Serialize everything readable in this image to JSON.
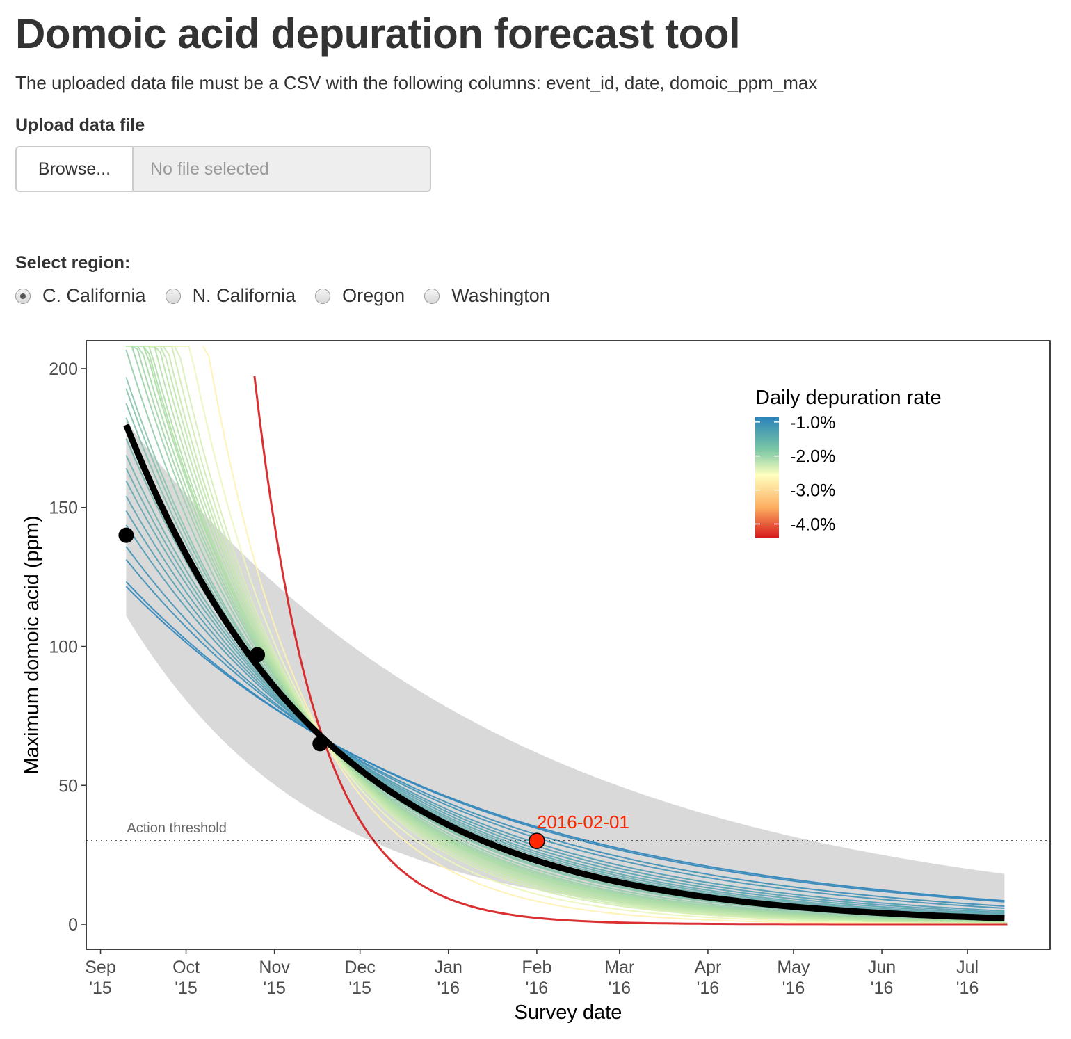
{
  "header": {
    "title": "Domoic acid depuration forecast tool",
    "instructions": "The uploaded data file must be a CSV with the following columns: event_id, date, domoic_ppm_max"
  },
  "upload": {
    "label": "Upload data file",
    "browse_label": "Browse...",
    "file_status": "No file selected"
  },
  "region": {
    "label": "Select region:",
    "options": [
      {
        "label": "C. California",
        "selected": true
      },
      {
        "label": "N. California",
        "selected": false
      },
      {
        "label": "Oregon",
        "selected": false
      },
      {
        "label": "Washington",
        "selected": false
      }
    ]
  },
  "chart_data": {
    "type": "line",
    "xlabel": "Survey date",
    "ylabel": "Maximum domoic acid (ppm)",
    "xlim": [
      "2015-08-27",
      "2016-07-30"
    ],
    "ylim": [
      -9,
      210
    ],
    "x_ticks": [
      {
        "date": "2015-09-01",
        "label": [
          "Sep",
          "'15"
        ]
      },
      {
        "date": "2015-10-01",
        "label": [
          "Oct",
          "'15"
        ]
      },
      {
        "date": "2015-11-01",
        "label": [
          "Nov",
          "'15"
        ]
      },
      {
        "date": "2015-12-01",
        "label": [
          "Dec",
          "'15"
        ]
      },
      {
        "date": "2016-01-01",
        "label": [
          "Jan",
          "'16"
        ]
      },
      {
        "date": "2016-02-01",
        "label": [
          "Feb",
          "'16"
        ]
      },
      {
        "date": "2016-03-01",
        "label": [
          "Mar",
          "'16"
        ]
      },
      {
        "date": "2016-04-01",
        "label": [
          "Apr",
          "'16"
        ]
      },
      {
        "date": "2016-05-01",
        "label": [
          "May",
          "'16"
        ]
      },
      {
        "date": "2016-06-01",
        "label": [
          "Jun",
          "'16"
        ]
      },
      {
        "date": "2016-07-01",
        "label": [
          "Jul",
          "'16"
        ]
      }
    ],
    "y_ticks": [
      0,
      50,
      100,
      150,
      200
    ],
    "grid": false,
    "observed_points": [
      {
        "date": "2015-09-10",
        "ppm": 140
      },
      {
        "date": "2015-10-26",
        "ppm": 97
      },
      {
        "date": "2015-11-17",
        "ppm": 65
      }
    ],
    "anchor": {
      "date": "2015-11-18",
      "ppm": 67
    },
    "fit": {
      "start": "2015-09-10",
      "end": "2016-07-15",
      "daily_rate_pct": -1.42
    },
    "confidence_band": {
      "upper_start_ppm": 181,
      "upper_end_ppm": 18,
      "lower_start_ppm": 111,
      "lower_end_ppm": 1
    },
    "forecast_point": {
      "date": "2016-02-01",
      "ppm": 30,
      "label": "2016-02-01"
    },
    "threshold": {
      "ppm": 30,
      "label": "Action threshold"
    },
    "ensemble_end": "2016-07-15",
    "ensemble": [
      {
        "start": "2015-09-10",
        "rate_pct": -0.86
      },
      {
        "start": "2015-09-10",
        "rate_pct": -0.88
      },
      {
        "start": "2015-09-10",
        "rate_pct": -0.97
      },
      {
        "start": "2015-09-10",
        "rate_pct": -1.02
      },
      {
        "start": "2015-09-10",
        "rate_pct": -1.1
      },
      {
        "start": "2015-09-10",
        "rate_pct": -1.15
      },
      {
        "start": "2015-09-10",
        "rate_pct": -1.2
      },
      {
        "start": "2015-09-10",
        "rate_pct": -1.25
      },
      {
        "start": "2015-09-10",
        "rate_pct": -1.29
      },
      {
        "start": "2015-09-10",
        "rate_pct": -1.33
      },
      {
        "start": "2015-09-10",
        "rate_pct": -1.38
      },
      {
        "start": "2015-09-10",
        "rate_pct": -1.41
      },
      {
        "start": "2015-09-10",
        "rate_pct": -1.44
      },
      {
        "start": "2015-09-10",
        "rate_pct": -1.48
      },
      {
        "start": "2015-09-10",
        "rate_pct": -1.52
      },
      {
        "start": "2015-09-10",
        "rate_pct": -1.55
      },
      {
        "start": "2015-09-10",
        "rate_pct": -1.62
      },
      {
        "start": "2015-09-10",
        "rate_pct": -1.68
      },
      {
        "start": "2015-09-10",
        "rate_pct": -1.72
      },
      {
        "start": "2015-09-10",
        "rate_pct": -1.76
      },
      {
        "start": "2015-09-10",
        "rate_pct": -1.8
      },
      {
        "start": "2015-09-10",
        "rate_pct": -1.82
      },
      {
        "start": "2015-09-10",
        "rate_pct": -1.85
      },
      {
        "start": "2015-09-10",
        "rate_pct": -1.9
      },
      {
        "start": "2015-09-10",
        "rate_pct": -1.95
      },
      {
        "start": "2015-09-10",
        "rate_pct": -2.0
      },
      {
        "start": "2015-09-13",
        "rate_pct": -2.05
      },
      {
        "start": "2015-09-16",
        "rate_pct": -2.12
      },
      {
        "start": "2015-09-19",
        "rate_pct": -2.2
      },
      {
        "start": "2015-09-26",
        "rate_pct": -2.4
      },
      {
        "start": "2015-10-07",
        "rate_pct": -2.75
      },
      {
        "start": "2015-10-25",
        "rate_pct": -4.4
      }
    ],
    "legend": {
      "title": "Daily depuration rate",
      "position": "top-right",
      "scale_min_pct": -4.4,
      "scale_max_pct": -0.86,
      "ticks": [
        {
          "value": -1.0,
          "label": "-1.0%"
        },
        {
          "value": -2.0,
          "label": "-2.0%"
        },
        {
          "value": -3.0,
          "label": "-3.0%"
        },
        {
          "value": -4.0,
          "label": "-4.0%"
        }
      ],
      "colors": [
        "#2b83ba",
        "#abdda4",
        "#ffffbf",
        "#fdae61",
        "#d7191c"
      ]
    }
  }
}
